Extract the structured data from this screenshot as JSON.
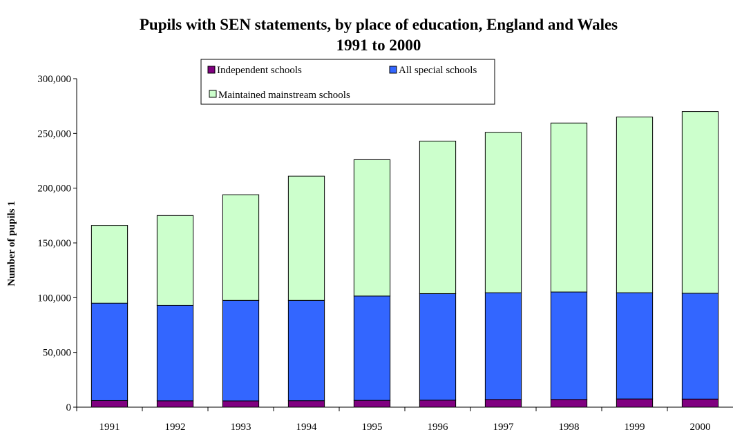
{
  "chart_data": {
    "type": "bar",
    "stacked": true,
    "title": "Pupils with SEN statements, by place of education, England and Wales",
    "subtitle": "1991 to 2000",
    "xlabel": "",
    "ylabel": "Number of pupils 1",
    "ylim": [
      0,
      300000
    ],
    "yticks": [
      "0",
      "50,000",
      "100,000",
      "150,000",
      "200,000",
      "250,000",
      "300,000"
    ],
    "ytick_values": [
      0,
      50000,
      100000,
      150000,
      200000,
      250000,
      300000
    ],
    "grid": false,
    "legend_position": "top",
    "categories": [
      "1991",
      "1992",
      "1993",
      "1994",
      "1995",
      "1996",
      "1997",
      "1998",
      "1999",
      "2000"
    ],
    "series": [
      {
        "name": "Independent schools",
        "color": "#800080",
        "values": [
          6000,
          5800,
          5700,
          5900,
          6200,
          6400,
          7000,
          7000,
          7500,
          7400
        ]
      },
      {
        "name": "All special schools",
        "color": "#3366ff",
        "values": [
          89000,
          87200,
          91800,
          91600,
          95300,
          97300,
          97500,
          98200,
          97000,
          96600
        ]
      },
      {
        "name": "Maintained mainstream schools",
        "color": "#ccffcc",
        "values": [
          71000,
          82000,
          96500,
          113500,
          124500,
          139300,
          146500,
          154300,
          160500,
          166000
        ]
      }
    ]
  }
}
